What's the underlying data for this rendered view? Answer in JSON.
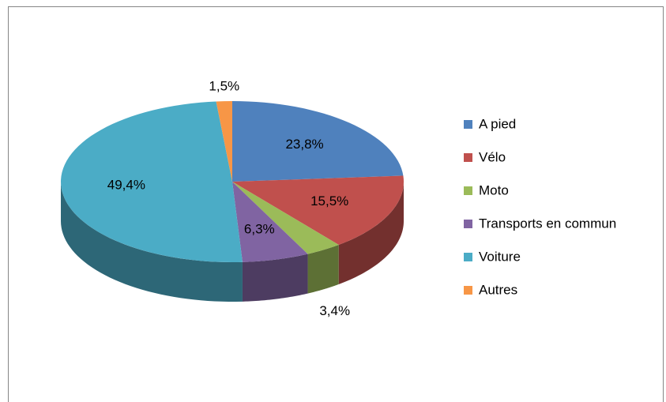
{
  "chart_data": {
    "type": "pie",
    "categories": [
      "A pied",
      "Vélo",
      "Moto",
      "Transports en commun",
      "Voiture",
      "Autres"
    ],
    "values": [
      23.8,
      15.5,
      3.4,
      6.3,
      49.4,
      1.5
    ],
    "value_labels": [
      "23,8%",
      "15,5%",
      "3,4%",
      "6,3%",
      "49,4%",
      "1,5%"
    ],
    "colors": [
      "#4f81bd",
      "#c0504d",
      "#9bbb59",
      "#8064a2",
      "#4bacc6",
      "#f79646"
    ],
    "legend": "right"
  }
}
